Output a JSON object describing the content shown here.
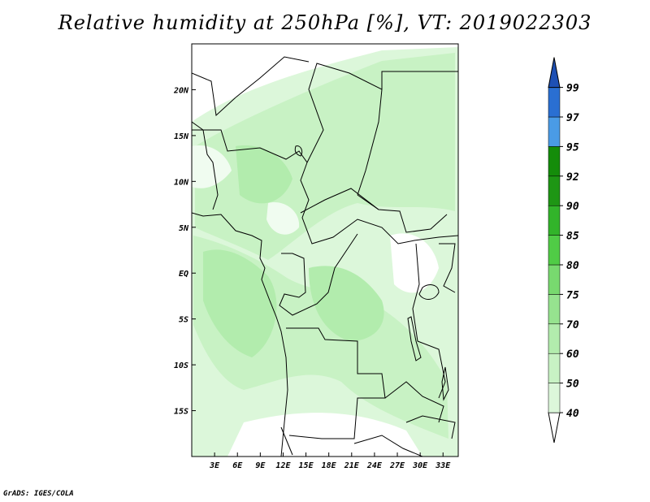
{
  "title": "Relative humidity at 250hPa [%], VT: 2019022303",
  "credit": "GrADS: IGES/COLA",
  "colors": {
    "c40": "#f0fcf0",
    "c50": "#dcf7da",
    "c60": "#c8f2c4",
    "c70": "#b2ecad",
    "c75": "#96e38f",
    "c80": "#78d96f",
    "c85": "#50cc46",
    "c90": "#32b42a",
    "c92": "#1e9614",
    "c95": "#148c0a",
    "c97": "#4a9be6",
    "c99": "#2a6fd2",
    "top": "#1e50b4"
  },
  "chart_data": {
    "type": "heatmap",
    "title": "Relative humidity at 250hPa [%], VT: 2019022303",
    "variable": "Relative humidity",
    "units": "%",
    "level": "250hPa",
    "valid_time": "2019022303",
    "x_ticks": [
      "3E",
      "6E",
      "9E",
      "12E",
      "15E",
      "18E",
      "21E",
      "24E",
      "27E",
      "30E",
      "33E"
    ],
    "y_ticks": [
      "20N",
      "15N",
      "10N",
      "5N",
      "EQ",
      "5S",
      "10S",
      "15S"
    ],
    "x_tick_values": [
      3,
      6,
      9,
      12,
      15,
      18,
      21,
      24,
      27,
      30,
      33
    ],
    "y_tick_values": [
      20,
      15,
      10,
      5,
      0,
      -5,
      -10,
      -15
    ],
    "lon_range": [
      0,
      35
    ],
    "lat_range": [
      -20,
      25
    ],
    "colorbar_levels": [
      "40",
      "50",
      "60",
      "70",
      "75",
      "80",
      "85",
      "90",
      "92",
      "95",
      "97",
      "99"
    ],
    "colorbar_level_values": [
      40,
      50,
      60,
      70,
      75,
      80,
      85,
      90,
      92,
      95,
      97,
      99
    ]
  }
}
